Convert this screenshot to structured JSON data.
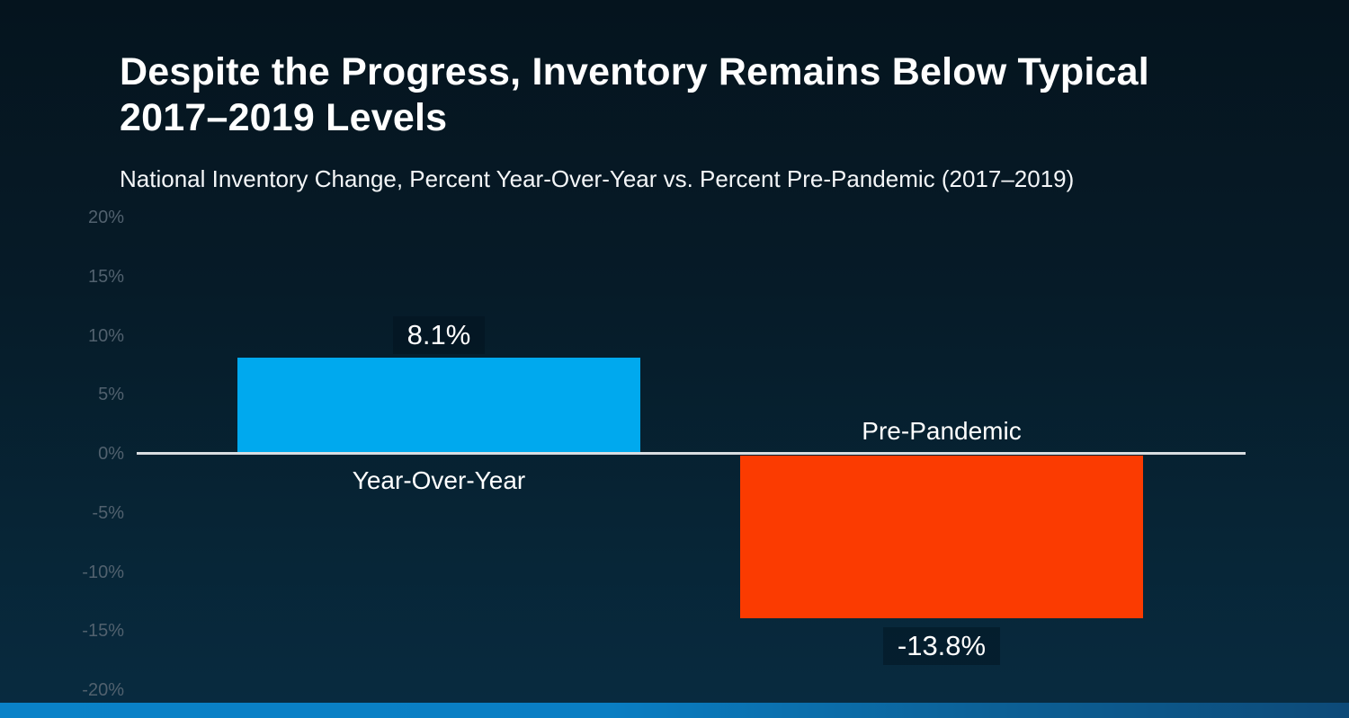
{
  "chart_data": {
    "type": "bar",
    "title": "Despite the Progress, Inventory Remains Below Typical 2017–2019 Levels",
    "subtitle": "National Inventory Change, Percent Year-Over-Year vs. Percent Pre-Pandemic (2017–2019)",
    "categories": [
      "Year-Over-Year",
      "Pre-Pandemic"
    ],
    "values": [
      8.1,
      -13.8
    ],
    "value_labels": [
      "8.1%",
      "-13.8%"
    ],
    "series_colors": [
      "#00a9ee",
      "#fb3b01"
    ],
    "ylabel": "",
    "xlabel": "",
    "ylim": [
      -20,
      20
    ],
    "ytick_labels": [
      "20%",
      "15%",
      "10%",
      "5%",
      "0%",
      "-5%",
      "-10%",
      "-15%",
      "-20%"
    ],
    "ytick_values": [
      20,
      15,
      10,
      5,
      0,
      -5,
      -10,
      -15,
      -20
    ],
    "grid": false,
    "legend": "none",
    "axis_line_color": "#d9dde1",
    "tick_label_color": "#51616e",
    "label_text_color": "#ffffff"
  },
  "footer": {
    "strip_color_left": "#0a82c8",
    "strip_color_right": "#0d4a78"
  },
  "background": {
    "top": "#05141e",
    "bottom": "#082b40"
  }
}
